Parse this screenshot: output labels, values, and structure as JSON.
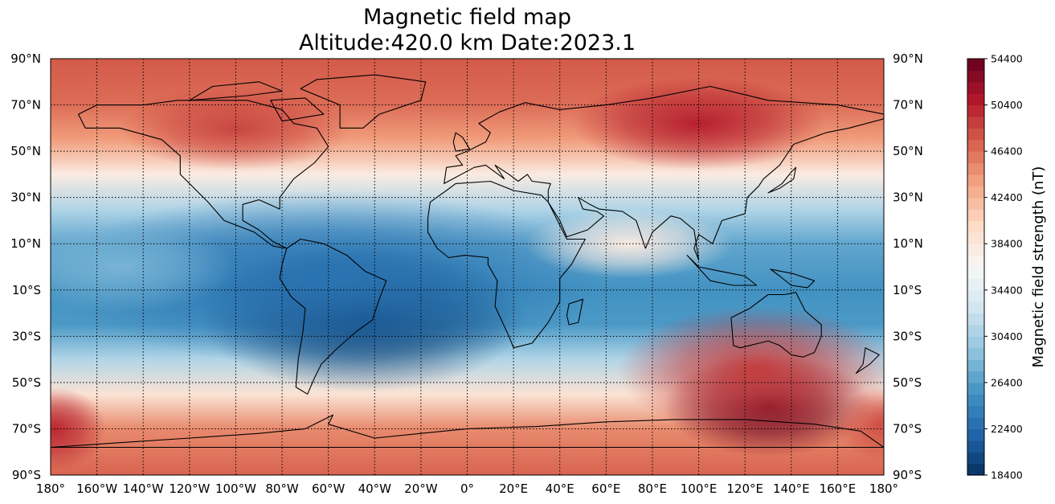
{
  "title": {
    "line1": "Magnetic field map",
    "line2": "Altitude:420.0 km  Date:2023.1"
  },
  "map": {
    "projection": "equirectangular",
    "lat_range": [
      -90,
      90
    ],
    "lon_range": [
      -180,
      180
    ],
    "grid": true,
    "lat_labels": [
      "90°N",
      "70°N",
      "50°N",
      "30°N",
      "10°N",
      "10°S",
      "30°S",
      "50°S",
      "70°S",
      "90°S"
    ],
    "lon_labels": [
      "180°",
      "160°W",
      "140°W",
      "120°W",
      "100°W",
      "80°W",
      "60°W",
      "40°W",
      "20°W",
      "0°",
      "20°E",
      "40°E",
      "60°E",
      "80°E",
      "100°E",
      "120°E",
      "140°E",
      "160°E",
      "180°"
    ],
    "colormap": "RdBu_r",
    "coastlines": true,
    "country_borders": true
  },
  "colorbar": {
    "label": "Magnetic field strength (nT)",
    "min": 18400,
    "max": 54400,
    "ticks": [
      "18400",
      "22400",
      "26400",
      "30400",
      "34400",
      "38400",
      "42400",
      "46400",
      "50400",
      "54400"
    ]
  },
  "chart_data": {
    "type": "heatmap",
    "title": "Magnetic field map\nAltitude:420.0 km  Date:2023.1",
    "xlabel": "",
    "ylabel": "",
    "xlim": [
      -180,
      180
    ],
    "ylim": [
      -90,
      90
    ],
    "units": "nT",
    "zlim": [
      18400,
      54400
    ],
    "features": [
      {
        "lon": -45,
        "lat": -22,
        "value": 18900
      },
      {
        "lon": 130,
        "lat": -60,
        "value": 54400
      },
      {
        "lon": 100,
        "lat": 62,
        "value": 50400
      },
      {
        "lon": -100,
        "lat": 60,
        "value": 48500
      },
      {
        "lon": -178,
        "lat": -70,
        "value": 50000
      }
    ]
  }
}
